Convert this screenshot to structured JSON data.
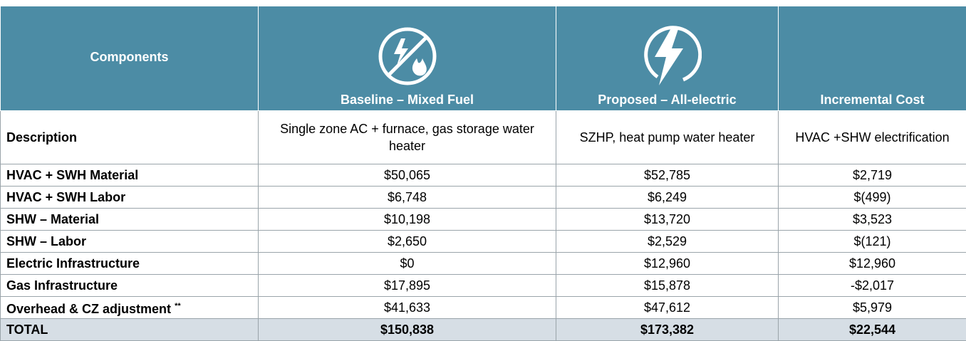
{
  "table": {
    "header": [
      "Components",
      "Baseline – Mixed Fuel",
      "Proposed – All-electric",
      "Incremental Cost"
    ],
    "rows": [
      [
        "Description",
        "Single zone AC + furnace, gas storage water heater",
        "SZHP, heat pump water heater",
        "HVAC +SHW electrification"
      ],
      [
        "HVAC + SWH Material",
        "$50,065",
        "$52,785",
        "$2,719"
      ],
      [
        "HVAC + SWH Labor",
        "$6,748",
        "$6,249",
        "$(499)"
      ],
      [
        "SHW – Material",
        "$10,198",
        "$13,720",
        "$3,523"
      ],
      [
        "SHW – Labor",
        "$2,650",
        "$2,529",
        "$(121)"
      ],
      [
        "Electric Infrastructure",
        "$0",
        "$12,960",
        "$12,960"
      ],
      [
        "Gas Infrastructure",
        "$17,895",
        "$15,878",
        "-$2,017"
      ],
      [
        "Overhead & CZ adjustment",
        "$41,633",
        "$47,612",
        "$5,979"
      ],
      [
        "TOTAL",
        "$150,838",
        "$173,382",
        "$22,544"
      ]
    ],
    "note_mark": "**"
  }
}
